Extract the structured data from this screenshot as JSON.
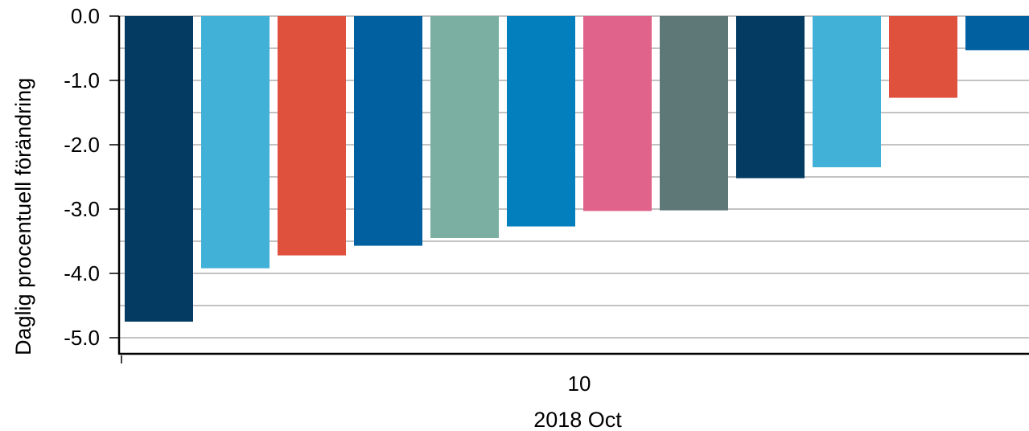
{
  "chart_data": {
    "type": "bar",
    "title": "",
    "ylabel": "Daglig procentuell förändring",
    "xlabel": "2018 Oct",
    "x_tick_labels": [
      "10"
    ],
    "y_tick_labels": [
      "0.0",
      "-1.0",
      "-2.0",
      "-3.0",
      "-4.0",
      "-5.0"
    ],
    "ylim": [
      -5.25,
      0
    ],
    "grid": true,
    "values": [
      -4.75,
      -3.92,
      -3.72,
      -3.57,
      -3.45,
      -3.27,
      -3.03,
      -3.02,
      -2.52,
      -2.35,
      -1.27,
      -0.53
    ],
    "colors": [
      "#033B62",
      "#41B1D7",
      "#E0513D",
      "#01609F",
      "#7AAFA1",
      "#027FBC",
      "#E0638B",
      "#5E7878",
      "#033B62",
      "#41B1D7",
      "#E0513D",
      "#01609F"
    ]
  }
}
